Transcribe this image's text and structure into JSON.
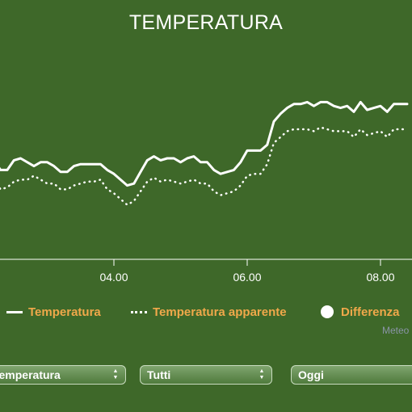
{
  "title": "TEMPERATURA",
  "chart_data": {
    "type": "line",
    "title": "TEMPERATURA",
    "x_ticks": [
      "04.00",
      "06.00",
      "08.00"
    ],
    "series": [
      {
        "name": "Temperatura",
        "style": "solid",
        "x": [
          2.2,
          2.3,
          2.4,
          2.5,
          2.6,
          2.7,
          2.8,
          2.9,
          3.0,
          3.1,
          3.2,
          3.3,
          3.4,
          3.5,
          3.6,
          3.7,
          3.8,
          3.9,
          4.0,
          4.1,
          4.2,
          4.3,
          4.4,
          4.5,
          4.6,
          4.7,
          4.8,
          4.9,
          5.0,
          5.1,
          5.2,
          5.3,
          5.4,
          5.5,
          5.6,
          5.7,
          5.8,
          5.9,
          6.0,
          6.1,
          6.2,
          6.3,
          6.4,
          6.5,
          6.6,
          6.7,
          6.8,
          6.9,
          7.0,
          7.1,
          7.2,
          7.3,
          7.4,
          7.5,
          7.6,
          7.7,
          7.8,
          7.9,
          8.0,
          8.1,
          8.2,
          8.3,
          8.4
        ],
        "y": [
          19.4,
          18.9,
          18.9,
          19.4,
          19.5,
          19.3,
          19.1,
          19.3,
          19.3,
          19.1,
          18.8,
          18.8,
          19.1,
          19.2,
          19.2,
          19.2,
          19.2,
          18.9,
          18.7,
          18.4,
          18.1,
          18.2,
          18.8,
          19.4,
          19.6,
          19.4,
          19.5,
          19.5,
          19.3,
          19.5,
          19.6,
          19.3,
          19.3,
          18.9,
          18.7,
          18.8,
          18.9,
          19.3,
          19.9,
          19.9,
          19.9,
          20.2,
          21.4,
          21.8,
          22.1,
          22.3,
          22.3,
          22.4,
          22.2,
          22.4,
          22.4,
          22.2,
          22.1,
          22.2,
          21.9,
          22.4,
          22.0,
          22.1,
          22.2,
          21.9,
          22.3,
          22.3,
          22.3
        ]
      },
      {
        "name": "Temperatura apparente",
        "style": "dotted",
        "x": [
          2.2,
          2.3,
          2.4,
          2.5,
          2.6,
          2.7,
          2.8,
          2.9,
          3.0,
          3.1,
          3.2,
          3.3,
          3.4,
          3.5,
          3.6,
          3.7,
          3.8,
          3.9,
          4.0,
          4.1,
          4.2,
          4.3,
          4.4,
          4.5,
          4.6,
          4.7,
          4.8,
          4.9,
          5.0,
          5.1,
          5.2,
          5.3,
          5.4,
          5.5,
          5.6,
          5.7,
          5.8,
          5.9,
          6.0,
          6.1,
          6.2,
          6.3,
          6.4,
          6.5,
          6.6,
          6.7,
          6.8,
          6.9,
          7.0,
          7.1,
          7.2,
          7.3,
          7.4,
          7.5,
          7.6,
          7.7,
          7.8,
          7.9,
          8.0,
          8.1,
          8.2,
          8.3,
          8.4
        ],
        "y": [
          18.4,
          17.9,
          18.0,
          18.3,
          18.4,
          18.4,
          18.6,
          18.4,
          18.2,
          18.2,
          17.9,
          17.9,
          18.1,
          18.2,
          18.3,
          18.3,
          18.4,
          17.9,
          17.7,
          17.4,
          17.1,
          17.3,
          17.8,
          18.3,
          18.5,
          18.3,
          18.4,
          18.3,
          18.2,
          18.3,
          18.4,
          18.2,
          18.2,
          17.8,
          17.6,
          17.7,
          17.8,
          18.1,
          18.6,
          18.7,
          18.7,
          19.2,
          20.3,
          20.6,
          20.9,
          21.0,
          21.0,
          21.0,
          20.9,
          21.1,
          21.0,
          20.9,
          20.9,
          20.9,
          20.6,
          21.0,
          20.7,
          20.8,
          20.9,
          20.6,
          21.0,
          21.0,
          21.0
        ]
      }
    ],
    "legend": [
      "Temperatura",
      "Temperatura apparente",
      "Differenza"
    ],
    "legend_position": "bottom",
    "colors": {
      "background": "#3e6829",
      "line": "#ffffff",
      "legend_text": "#f0a84a"
    }
  },
  "legend": {
    "temperatura": "Temperatura",
    "apparente": "Temperatura apparente",
    "differenza": "Differenza"
  },
  "credit": "Meteo",
  "controls": {
    "select_variable": "Temperatura",
    "select_filter": "Tutti",
    "select_period": "Oggi"
  }
}
